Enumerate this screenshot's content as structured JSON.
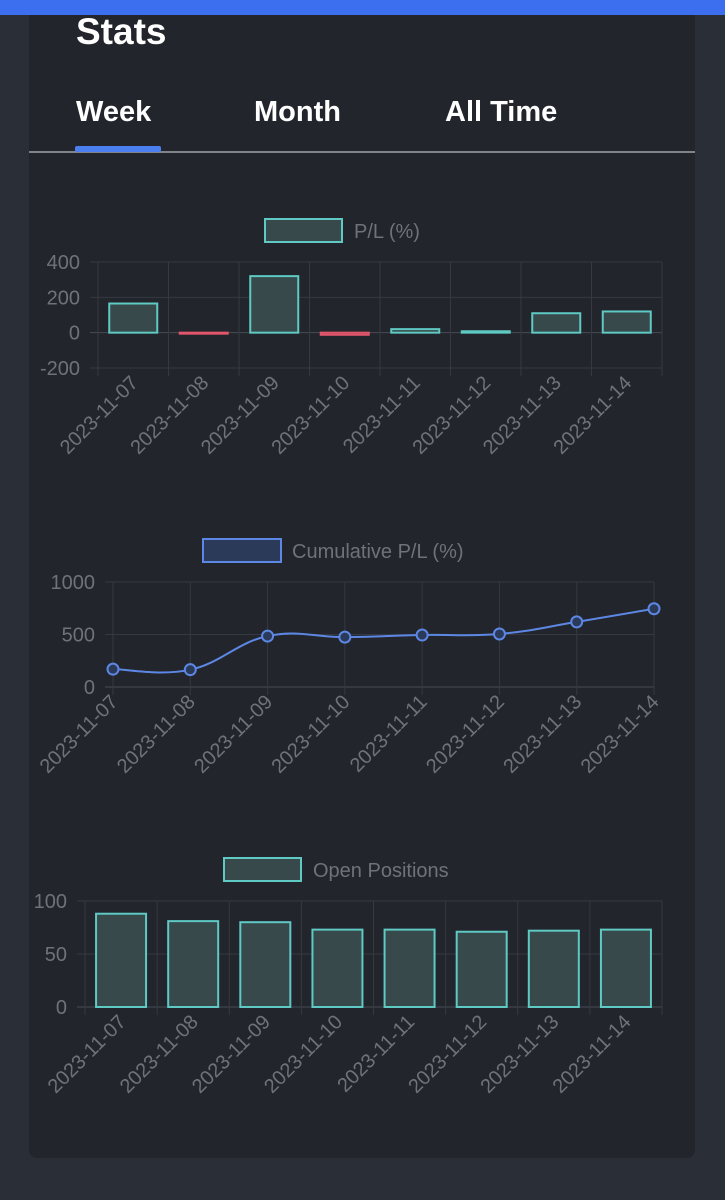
{
  "header": {
    "title": "Stats"
  },
  "tabs": [
    {
      "label": "Week",
      "active": true
    },
    {
      "label": "Month",
      "active": false
    },
    {
      "label": "All Time",
      "active": false
    }
  ],
  "colors": {
    "accent": "#3b6fef",
    "teal": "#5fc9c4",
    "teal_fill": "#37494a",
    "red": "#e2566b",
    "blue": "#5d87e4",
    "blue_fill": "#2c3a5a",
    "grid": "#353941",
    "tick": "#6f7378"
  },
  "chart_data": [
    {
      "type": "bar",
      "legend": "P/L (%)",
      "categories": [
        "2023-11-07",
        "2023-11-08",
        "2023-11-09",
        "2023-11-10",
        "2023-11-11",
        "2023-11-12",
        "2023-11-13",
        "2023-11-14"
      ],
      "values": [
        165,
        -5,
        320,
        -12,
        20,
        8,
        110,
        120
      ],
      "ylim": [
        -200,
        400
      ],
      "yticks": [
        400,
        200,
        0,
        -200
      ],
      "grid": true
    },
    {
      "type": "line",
      "legend": "Cumulative P/L (%)",
      "categories": [
        "2023-11-07",
        "2023-11-08",
        "2023-11-09",
        "2023-11-10",
        "2023-11-11",
        "2023-11-12",
        "2023-11-13",
        "2023-11-14"
      ],
      "values": [
        170,
        165,
        485,
        475,
        495,
        505,
        620,
        745
      ],
      "ylim": [
        0,
        1000
      ],
      "yticks": [
        1000,
        500,
        0
      ],
      "grid": true
    },
    {
      "type": "bar",
      "legend": "Open Positions",
      "categories": [
        "2023-11-07",
        "2023-11-08",
        "2023-11-09",
        "2023-11-10",
        "2023-11-11",
        "2023-11-12",
        "2023-11-13",
        "2023-11-14"
      ],
      "values": [
        88,
        81,
        80,
        73,
        73,
        71,
        72,
        73
      ],
      "ylim": [
        0,
        100
      ],
      "yticks": [
        100,
        50,
        0
      ],
      "grid": true
    }
  ]
}
